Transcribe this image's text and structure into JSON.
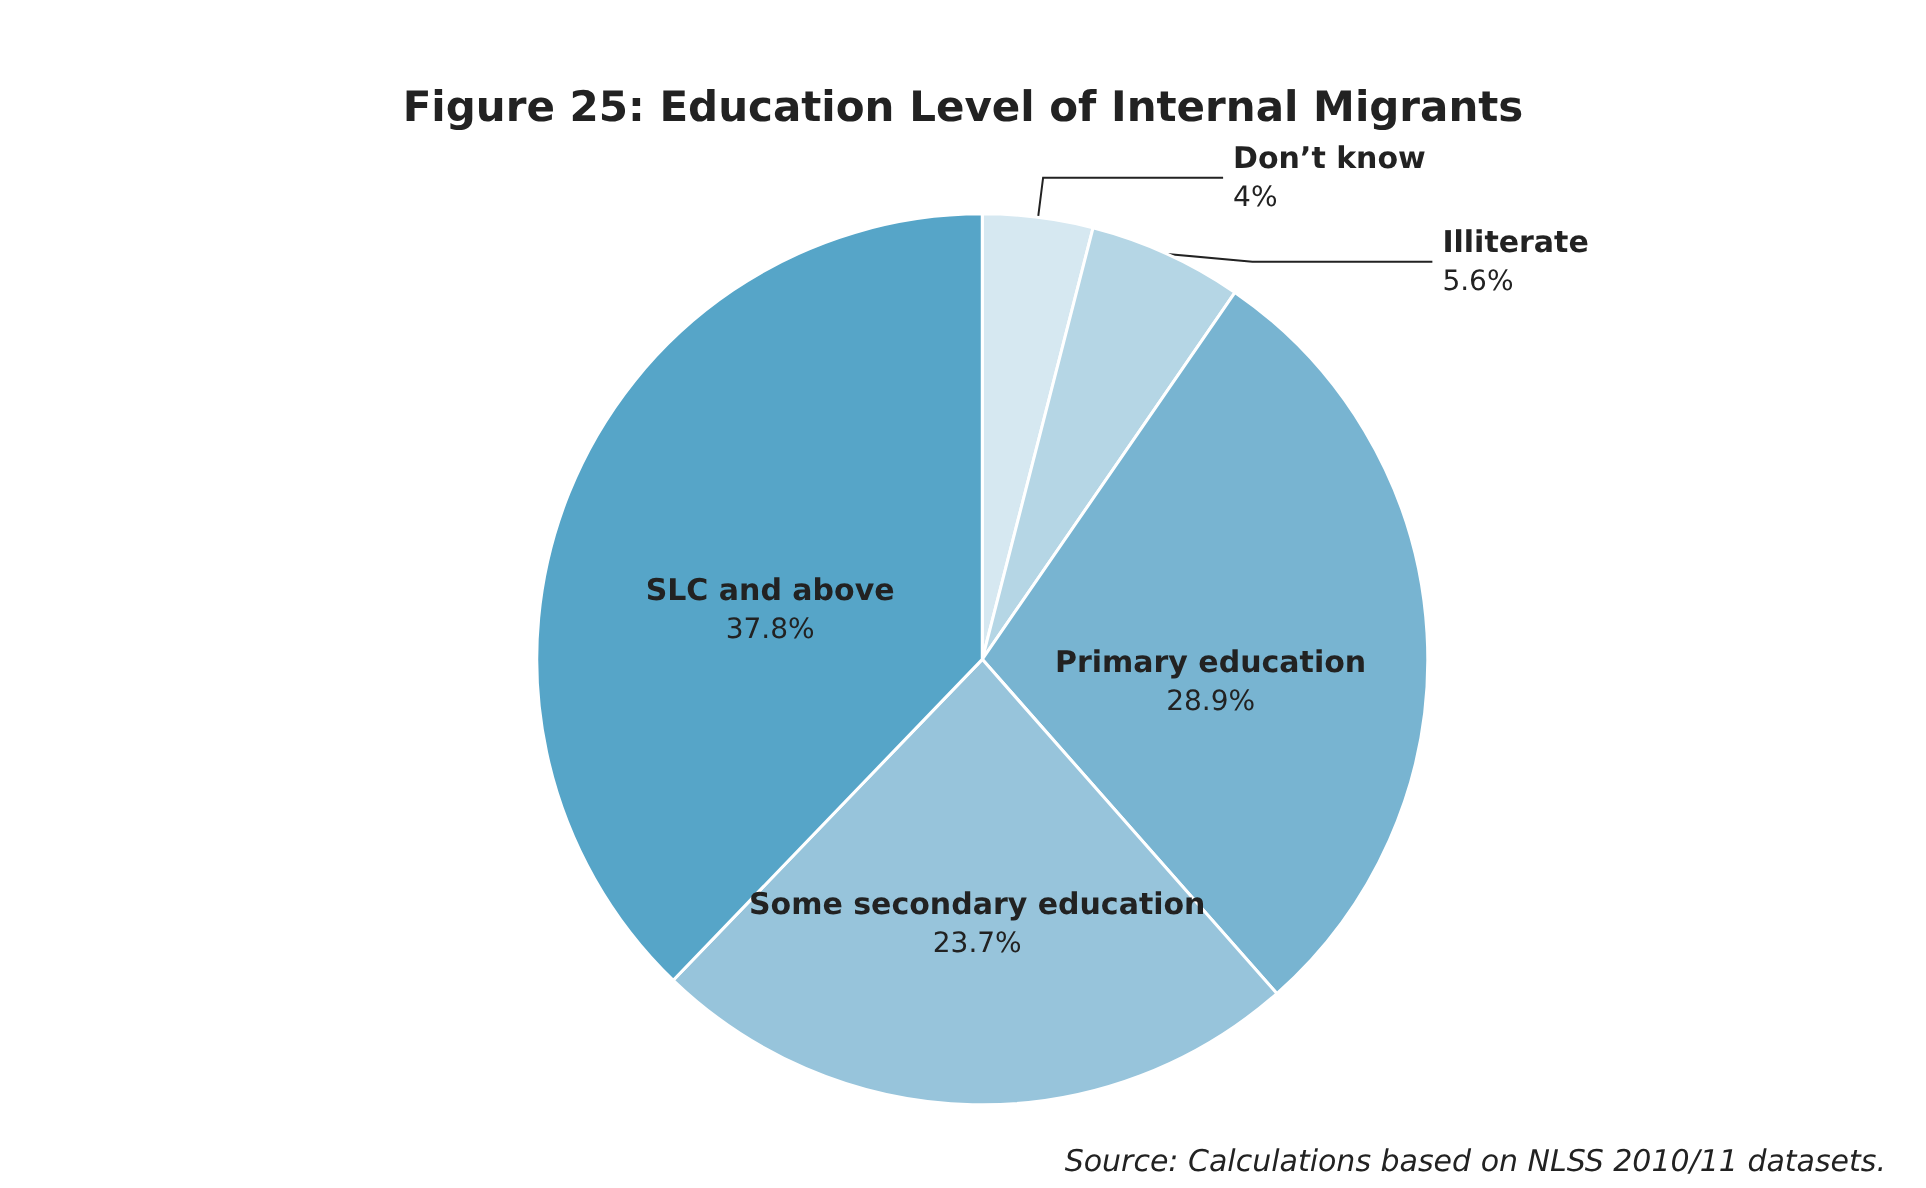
{
  "chart_data": {
    "type": "pie",
    "title": "Figure 25: Education Level of Internal Migrants",
    "categories": [
      "Don’t know",
      "Illiterate",
      "Primary education",
      "Some secondary education",
      "SLC and above"
    ],
    "values": [
      4,
      5.6,
      28.9,
      23.7,
      37.8
    ],
    "colors": [
      "#d6e8f1",
      "#b5d6e5",
      "#78b4d1",
      "#97c4db",
      "#56a5c8"
    ],
    "value_labels": [
      "4%",
      "5.6%",
      "28.9%",
      "23.7%",
      "37.8%"
    ],
    "legend": false,
    "annotations": [
      "Source: Calculations based on NLSS 2010/11 datasets."
    ]
  }
}
